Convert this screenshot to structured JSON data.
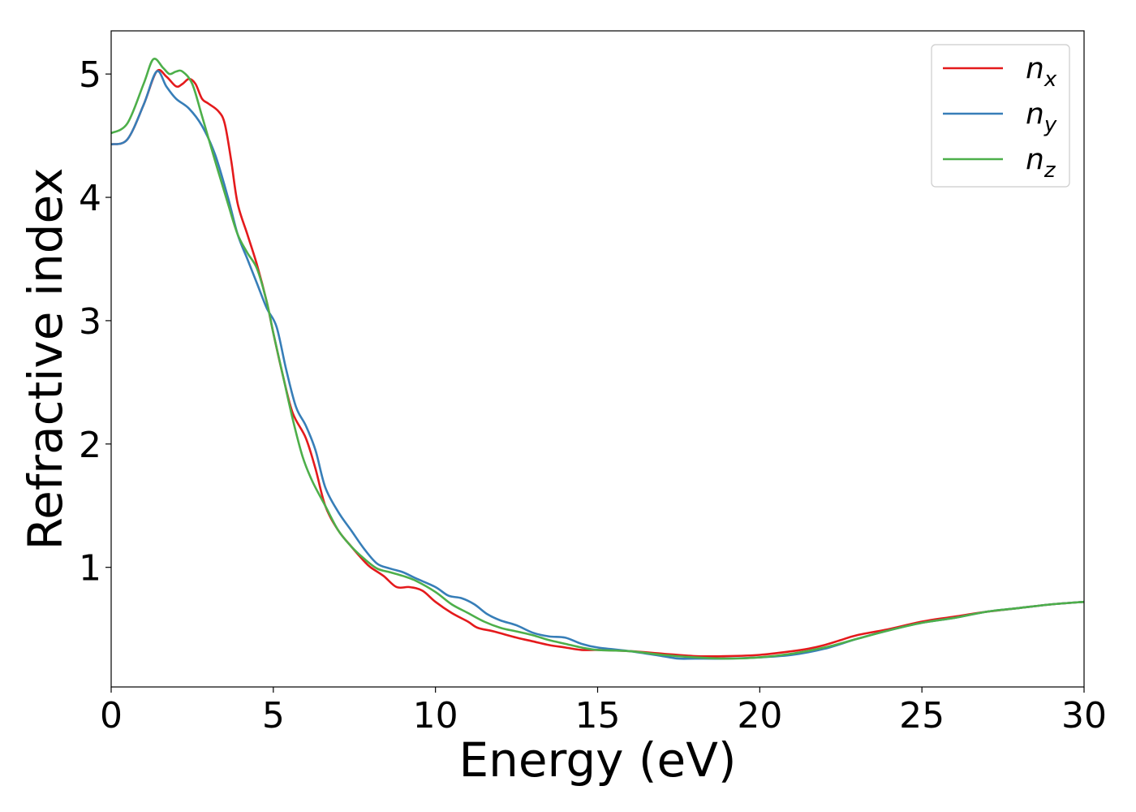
{
  "chart_data": {
    "type": "line",
    "title": "",
    "xlabel": "Energy (eV)",
    "ylabel": "Refractive index",
    "xlim": [
      0,
      30
    ],
    "ylim": [
      0.03,
      5.35
    ],
    "xticks": [
      0,
      5,
      10,
      15,
      20,
      25,
      30
    ],
    "xtick_labels": [
      "0",
      "5",
      "10",
      "15",
      "20",
      "25",
      "30"
    ],
    "yticks": [
      1,
      2,
      3,
      4,
      5
    ],
    "ytick_labels": [
      "1",
      "2",
      "3",
      "4",
      "5"
    ],
    "grid": false,
    "legend_position": "top-right",
    "series": [
      {
        "name": "n_x",
        "legend_base": "n",
        "legend_sub": "x",
        "color": "#e41a1c",
        "points": [
          [
            0,
            4.43
          ],
          [
            0.5,
            4.47
          ],
          [
            1.0,
            4.75
          ],
          [
            1.4,
            5.02
          ],
          [
            1.7,
            4.98
          ],
          [
            2.0,
            4.9
          ],
          [
            2.2,
            4.92
          ],
          [
            2.4,
            4.96
          ],
          [
            2.6,
            4.92
          ],
          [
            2.8,
            4.8
          ],
          [
            3.0,
            4.76
          ],
          [
            3.3,
            4.7
          ],
          [
            3.5,
            4.6
          ],
          [
            3.7,
            4.3
          ],
          [
            3.9,
            3.95
          ],
          [
            4.2,
            3.7
          ],
          [
            4.5,
            3.45
          ],
          [
            4.8,
            3.15
          ],
          [
            5.0,
            2.9
          ],
          [
            5.3,
            2.55
          ],
          [
            5.6,
            2.25
          ],
          [
            6.0,
            2.05
          ],
          [
            6.3,
            1.8
          ],
          [
            6.6,
            1.5
          ],
          [
            7.0,
            1.3
          ],
          [
            7.4,
            1.17
          ],
          [
            7.8,
            1.05
          ],
          [
            8.0,
            1.0
          ],
          [
            8.4,
            0.93
          ],
          [
            8.8,
            0.84
          ],
          [
            9.2,
            0.84
          ],
          [
            9.6,
            0.81
          ],
          [
            10.0,
            0.72
          ],
          [
            10.5,
            0.63
          ],
          [
            11.0,
            0.56
          ],
          [
            11.3,
            0.51
          ],
          [
            11.8,
            0.48
          ],
          [
            12.5,
            0.43
          ],
          [
            13.0,
            0.4
          ],
          [
            13.5,
            0.37
          ],
          [
            14.0,
            0.35
          ],
          [
            14.5,
            0.33
          ],
          [
            15.0,
            0.33
          ],
          [
            16.0,
            0.32
          ],
          [
            17.0,
            0.3
          ],
          [
            18.0,
            0.28
          ],
          [
            19.0,
            0.28
          ],
          [
            20.0,
            0.29
          ],
          [
            21.0,
            0.32
          ],
          [
            21.5,
            0.34
          ],
          [
            22.0,
            0.37
          ],
          [
            22.5,
            0.41
          ],
          [
            23.0,
            0.45
          ],
          [
            24.0,
            0.5
          ],
          [
            25.0,
            0.56
          ],
          [
            26.0,
            0.6
          ],
          [
            27.0,
            0.64
          ],
          [
            28.0,
            0.67
          ],
          [
            29.0,
            0.7
          ],
          [
            30.0,
            0.72
          ]
        ]
      },
      {
        "name": "n_y",
        "legend_base": "n",
        "legend_sub": "y",
        "color": "#377eb8",
        "points": [
          [
            0,
            4.43
          ],
          [
            0.5,
            4.47
          ],
          [
            1.0,
            4.75
          ],
          [
            1.4,
            5.02
          ],
          [
            1.7,
            4.9
          ],
          [
            2.0,
            4.8
          ],
          [
            2.4,
            4.72
          ],
          [
            2.8,
            4.58
          ],
          [
            3.2,
            4.35
          ],
          [
            3.6,
            4.0
          ],
          [
            3.9,
            3.7
          ],
          [
            4.2,
            3.5
          ],
          [
            4.5,
            3.3
          ],
          [
            4.8,
            3.1
          ],
          [
            5.1,
            2.95
          ],
          [
            5.4,
            2.6
          ],
          [
            5.7,
            2.3
          ],
          [
            6.0,
            2.15
          ],
          [
            6.3,
            1.95
          ],
          [
            6.6,
            1.65
          ],
          [
            7.0,
            1.45
          ],
          [
            7.4,
            1.3
          ],
          [
            7.8,
            1.15
          ],
          [
            8.2,
            1.03
          ],
          [
            8.6,
            0.99
          ],
          [
            9.0,
            0.96
          ],
          [
            9.4,
            0.91
          ],
          [
            10.0,
            0.84
          ],
          [
            10.4,
            0.77
          ],
          [
            10.8,
            0.75
          ],
          [
            11.2,
            0.7
          ],
          [
            11.6,
            0.62
          ],
          [
            12.0,
            0.57
          ],
          [
            12.5,
            0.53
          ],
          [
            13.0,
            0.47
          ],
          [
            13.5,
            0.44
          ],
          [
            14.0,
            0.43
          ],
          [
            14.5,
            0.38
          ],
          [
            15.0,
            0.35
          ],
          [
            16.0,
            0.32
          ],
          [
            17.0,
            0.28
          ],
          [
            17.5,
            0.26
          ],
          [
            18.0,
            0.26
          ],
          [
            19.0,
            0.26
          ],
          [
            20.0,
            0.27
          ],
          [
            21.0,
            0.29
          ],
          [
            22.0,
            0.34
          ],
          [
            23.0,
            0.42
          ],
          [
            24.0,
            0.49
          ],
          [
            25.0,
            0.55
          ],
          [
            26.0,
            0.59
          ],
          [
            27.0,
            0.64
          ],
          [
            28.0,
            0.67
          ],
          [
            29.0,
            0.7
          ],
          [
            30.0,
            0.72
          ]
        ]
      },
      {
        "name": "n_z",
        "legend_base": "n",
        "legend_sub": "z",
        "color": "#4daf4a",
        "points": [
          [
            0,
            4.52
          ],
          [
            0.5,
            4.6
          ],
          [
            1.0,
            4.92
          ],
          [
            1.3,
            5.12
          ],
          [
            1.6,
            5.05
          ],
          [
            1.8,
            5.0
          ],
          [
            2.0,
            5.02
          ],
          [
            2.2,
            5.02
          ],
          [
            2.5,
            4.92
          ],
          [
            2.8,
            4.66
          ],
          [
            3.2,
            4.3
          ],
          [
            3.6,
            3.95
          ],
          [
            3.9,
            3.7
          ],
          [
            4.2,
            3.55
          ],
          [
            4.5,
            3.42
          ],
          [
            4.8,
            3.15
          ],
          [
            5.0,
            2.9
          ],
          [
            5.3,
            2.55
          ],
          [
            5.6,
            2.2
          ],
          [
            5.9,
            1.9
          ],
          [
            6.2,
            1.7
          ],
          [
            6.6,
            1.5
          ],
          [
            7.0,
            1.3
          ],
          [
            7.4,
            1.17
          ],
          [
            7.8,
            1.07
          ],
          [
            8.2,
            0.99
          ],
          [
            8.6,
            0.96
          ],
          [
            9.0,
            0.93
          ],
          [
            9.4,
            0.89
          ],
          [
            10.0,
            0.8
          ],
          [
            10.5,
            0.7
          ],
          [
            11.0,
            0.63
          ],
          [
            11.5,
            0.56
          ],
          [
            12.0,
            0.51
          ],
          [
            12.5,
            0.48
          ],
          [
            13.0,
            0.45
          ],
          [
            13.5,
            0.41
          ],
          [
            14.0,
            0.38
          ],
          [
            14.5,
            0.35
          ],
          [
            15.0,
            0.33
          ],
          [
            16.0,
            0.32
          ],
          [
            17.0,
            0.29
          ],
          [
            18.0,
            0.27
          ],
          [
            19.0,
            0.26
          ],
          [
            20.0,
            0.27
          ],
          [
            21.0,
            0.3
          ],
          [
            22.0,
            0.35
          ],
          [
            23.0,
            0.42
          ],
          [
            24.0,
            0.49
          ],
          [
            25.0,
            0.55
          ],
          [
            26.0,
            0.59
          ],
          [
            27.0,
            0.64
          ],
          [
            28.0,
            0.67
          ],
          [
            29.0,
            0.7
          ],
          [
            30.0,
            0.72
          ]
        ]
      }
    ]
  }
}
